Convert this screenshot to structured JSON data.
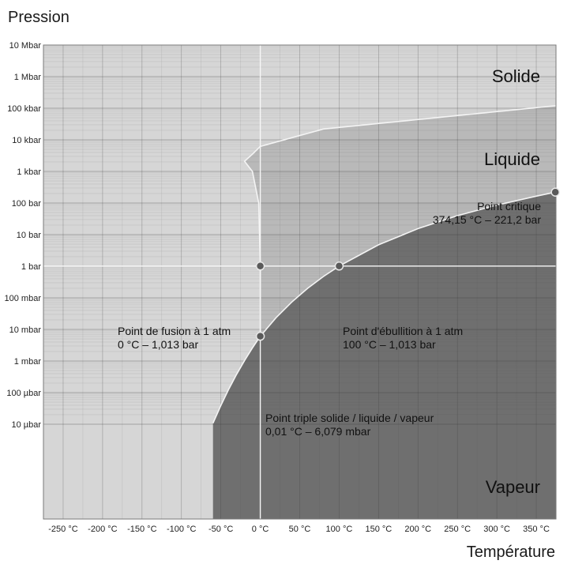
{
  "chart_data": {
    "type": "line",
    "y_title": "Pression",
    "x_title": "Température",
    "y_scale": "log",
    "x_range": [
      -275,
      375
    ],
    "y_range_bar": [
      1e-08,
      10000000
    ],
    "grid": true,
    "x_ticks": [
      {
        "value": -250,
        "label": "-250 °C"
      },
      {
        "value": -200,
        "label": "-200 °C"
      },
      {
        "value": -150,
        "label": "-150 °C"
      },
      {
        "value": -100,
        "label": "-100 °C"
      },
      {
        "value": -50,
        "label": "-50 °C"
      },
      {
        "value": 0,
        "label": "0 °C"
      },
      {
        "value": 50,
        "label": "50 °C"
      },
      {
        "value": 100,
        "label": "100 °C"
      },
      {
        "value": 150,
        "label": "150 °C"
      },
      {
        "value": 200,
        "label": "200 °C"
      },
      {
        "value": 250,
        "label": "250 °C"
      },
      {
        "value": 300,
        "label": "300 °C"
      },
      {
        "value": 350,
        "label": "350 °C"
      }
    ],
    "y_ticks": [
      {
        "value": 10000000,
        "label": "10 Mbar"
      },
      {
        "value": 1000000,
        "label": "1 Mbar"
      },
      {
        "value": 100000,
        "label": "100 kbar"
      },
      {
        "value": 10000,
        "label": "10 kbar"
      },
      {
        "value": 1000,
        "label": "1 kbar"
      },
      {
        "value": 100,
        "label": "100 bar"
      },
      {
        "value": 10,
        "label": "10 bar"
      },
      {
        "value": 1,
        "label": "1 bar"
      },
      {
        "value": 0.1,
        "label": "100 mbar"
      },
      {
        "value": 0.01,
        "label": "10 mbar"
      },
      {
        "value": 0.001,
        "label": "1 mbar"
      },
      {
        "value": 0.0001,
        "label": "100 µbar"
      },
      {
        "value": 1e-05,
        "label": "10 µbar"
      }
    ],
    "curves": {
      "vaporization": [
        [
          0.01,
          0.006079
        ],
        [
          20,
          0.0234
        ],
        [
          40,
          0.0738
        ],
        [
          60,
          0.199
        ],
        [
          80,
          0.474
        ],
        [
          100,
          1.013
        ],
        [
          150,
          4.76
        ],
        [
          200,
          15.5
        ],
        [
          250,
          39.7
        ],
        [
          300,
          85.9
        ],
        [
          350,
          165
        ],
        [
          374.15,
          221.2
        ]
      ],
      "sublimation": [
        [
          -60,
          1.08e-05
        ],
        [
          -50,
          3.94e-05
        ],
        [
          -40,
          0.000128
        ],
        [
          -30,
          0.00038
        ],
        [
          -20,
          0.00103
        ],
        [
          -10,
          0.0026
        ],
        [
          0.01,
          0.006079
        ]
      ],
      "fusion": [
        [
          0.01,
          0.006079
        ],
        [
          0,
          1.013
        ],
        [
          -2,
          100
        ],
        [
          -10,
          1000
        ],
        [
          -20,
          2100
        ],
        [
          -10,
          3500
        ],
        [
          0,
          6200
        ],
        [
          80,
          22000
        ],
        [
          375,
          120000
        ]
      ]
    },
    "regions": [
      {
        "name": "Solide",
        "color": "#d6d6d6"
      },
      {
        "name": "Liquide",
        "color": "#b9b9b9"
      },
      {
        "name": "Vapeur",
        "color": "#6f6f6f"
      }
    ],
    "points": [
      {
        "t": 0.01,
        "p": 0.006079,
        "lines": [
          "Point triple solide / liquide / vapeur",
          "0,01 °C – 6,079 mbar"
        ]
      },
      {
        "t": 0,
        "p": 1.013,
        "lines": [
          "Point de fusion à 1 atm",
          "0 °C – 1,013 bar"
        ]
      },
      {
        "t": 100,
        "p": 1.013,
        "lines": [
          "Point d'ébullition à 1 atm",
          "100 °C – 1,013 bar"
        ]
      },
      {
        "t": 374.15,
        "p": 221.2,
        "lines": [
          "Point critique",
          "374,15 °C –  221,2 bar"
        ]
      }
    ]
  }
}
